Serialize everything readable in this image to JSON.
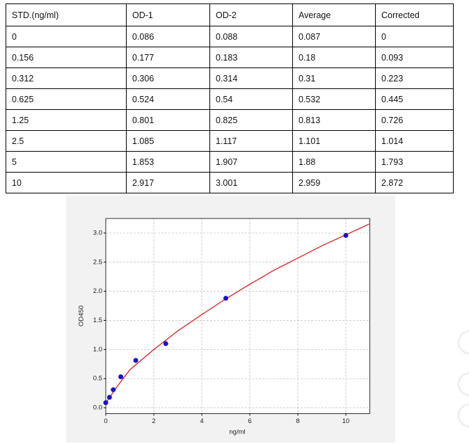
{
  "table": {
    "header": [
      "STD.(ng/ml)",
      "OD-1",
      "OD-2",
      "Average",
      "Corrected"
    ],
    "rows": [
      [
        "0",
        "0.086",
        "0.088",
        "0.087",
        "0"
      ],
      [
        "0.156",
        "0.177",
        "0.183",
        "0.18",
        "0.093"
      ],
      [
        "0.312",
        "0.306",
        "0.314",
        "0.31",
        "0.223"
      ],
      [
        "0.625",
        "0.524",
        "0.54",
        "0.532",
        "0.445"
      ],
      [
        "1.25",
        "0.801",
        "0.825",
        "0.813",
        "0.726"
      ],
      [
        "2.5",
        "1.085",
        "1.117",
        "1.101",
        "1.014"
      ],
      [
        "5",
        "1.853",
        "1.907",
        "1.88",
        "1.793"
      ],
      [
        "10",
        "2.917",
        "3.001",
        "2.959",
        "2.872"
      ]
    ]
  },
  "chart_data": {
    "type": "scatter",
    "x_label": "ng/ml",
    "y_label": "OD450",
    "series": [
      {
        "color": "#1a12c8",
        "x": [
          0,
          0.156,
          0.312,
          0.625,
          1.25,
          2.5,
          5,
          10
        ],
        "values": [
          0.087,
          0.18,
          0.31,
          0.532,
          0.813,
          1.101,
          1.88,
          2.959
        ]
      },
      {
        "color": "#d42020",
        "type": "line",
        "x": [
          0,
          0.5,
          1,
          2,
          3,
          4,
          5,
          6,
          7,
          8,
          9,
          10,
          11
        ],
        "values": [
          0.08,
          0.38,
          0.65,
          1.0,
          1.32,
          1.6,
          1.87,
          2.12,
          2.36,
          2.57,
          2.78,
          2.97,
          3.16
        ]
      }
    ],
    "xlim": [
      0,
      11
    ],
    "xticks": [
      0,
      2,
      4,
      6,
      8,
      10
    ],
    "ylim": [
      -0.1,
      3.25
    ],
    "yticks": [
      {
        "value": 0,
        "label": "0.0"
      },
      0.5,
      {
        "value": 1,
        "label": "1.0"
      },
      1.5,
      {
        "value": 2,
        "label": "2.0"
      },
      2.5,
      {
        "value": 3,
        "label": "3.0"
      }
    ],
    "grid": true
  }
}
